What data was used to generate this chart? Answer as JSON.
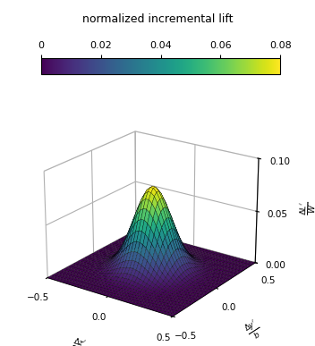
{
  "title": "normalized incremental lift",
  "colorbar_ticks": [
    0,
    0.02,
    0.04,
    0.06,
    0.08
  ],
  "colorbar_vmin": 0,
  "colorbar_vmax": 0.08,
  "xlabel": "$\\frac{\\Delta z'}{b}$",
  "ylabel": "$\\frac{\\Delta y'}{b}$",
  "zlabel": "$\\frac{\\Delta L'}{W}$",
  "xlim": [
    -0.5,
    0.5
  ],
  "ylim": [
    -0.5,
    0.5
  ],
  "zlim": [
    0,
    0.1
  ],
  "zticks": [
    0,
    0.05,
    0.1
  ],
  "xticks": [
    -0.5,
    0,
    0.5
  ],
  "yticks": [
    -0.5,
    0,
    0.5
  ],
  "sigma": 0.13,
  "peak": 0.08,
  "n_points": 40,
  "range_val": 0.5,
  "background_color": "#ffffff",
  "colormap": "viridis",
  "elev": 22,
  "azim": -55
}
